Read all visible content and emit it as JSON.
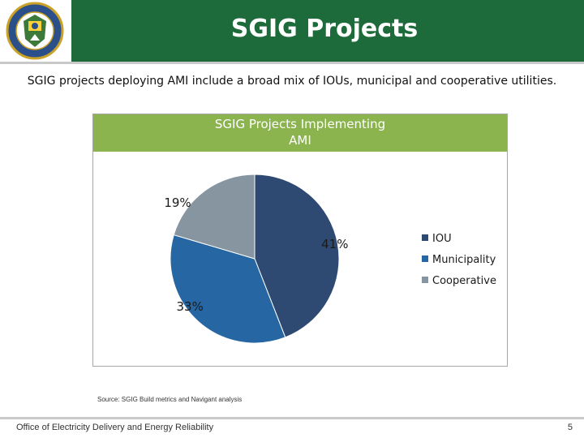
{
  "header": {
    "title": "SGIG Projects",
    "logo": "department-of-energy-seal",
    "background": "#1d6b3a"
  },
  "subtitle": "SGIG projects deploying AMI include a broad mix of IOUs, municipal and cooperative utilities.",
  "chart_data": {
    "type": "pie",
    "title": "SGIG Projects Implementing AMI",
    "title_lines": [
      "SGIG Projects Implementing",
      "AMI"
    ],
    "categories": [
      "IOU",
      "Municipality",
      "Cooperative"
    ],
    "values": [
      41,
      33,
      19
    ],
    "labels": [
      "41%",
      "33%",
      "19%"
    ],
    "colors": [
      "#2e4a72",
      "#2667a3",
      "#8795a0"
    ],
    "legend_position": "right",
    "title_band_color": "#8bb34e"
  },
  "source": "Source: SGIG Build metrics and Navigant analysis",
  "footer": {
    "text": "Office of Electricity Delivery and Energy Reliability",
    "page_number": "5"
  }
}
